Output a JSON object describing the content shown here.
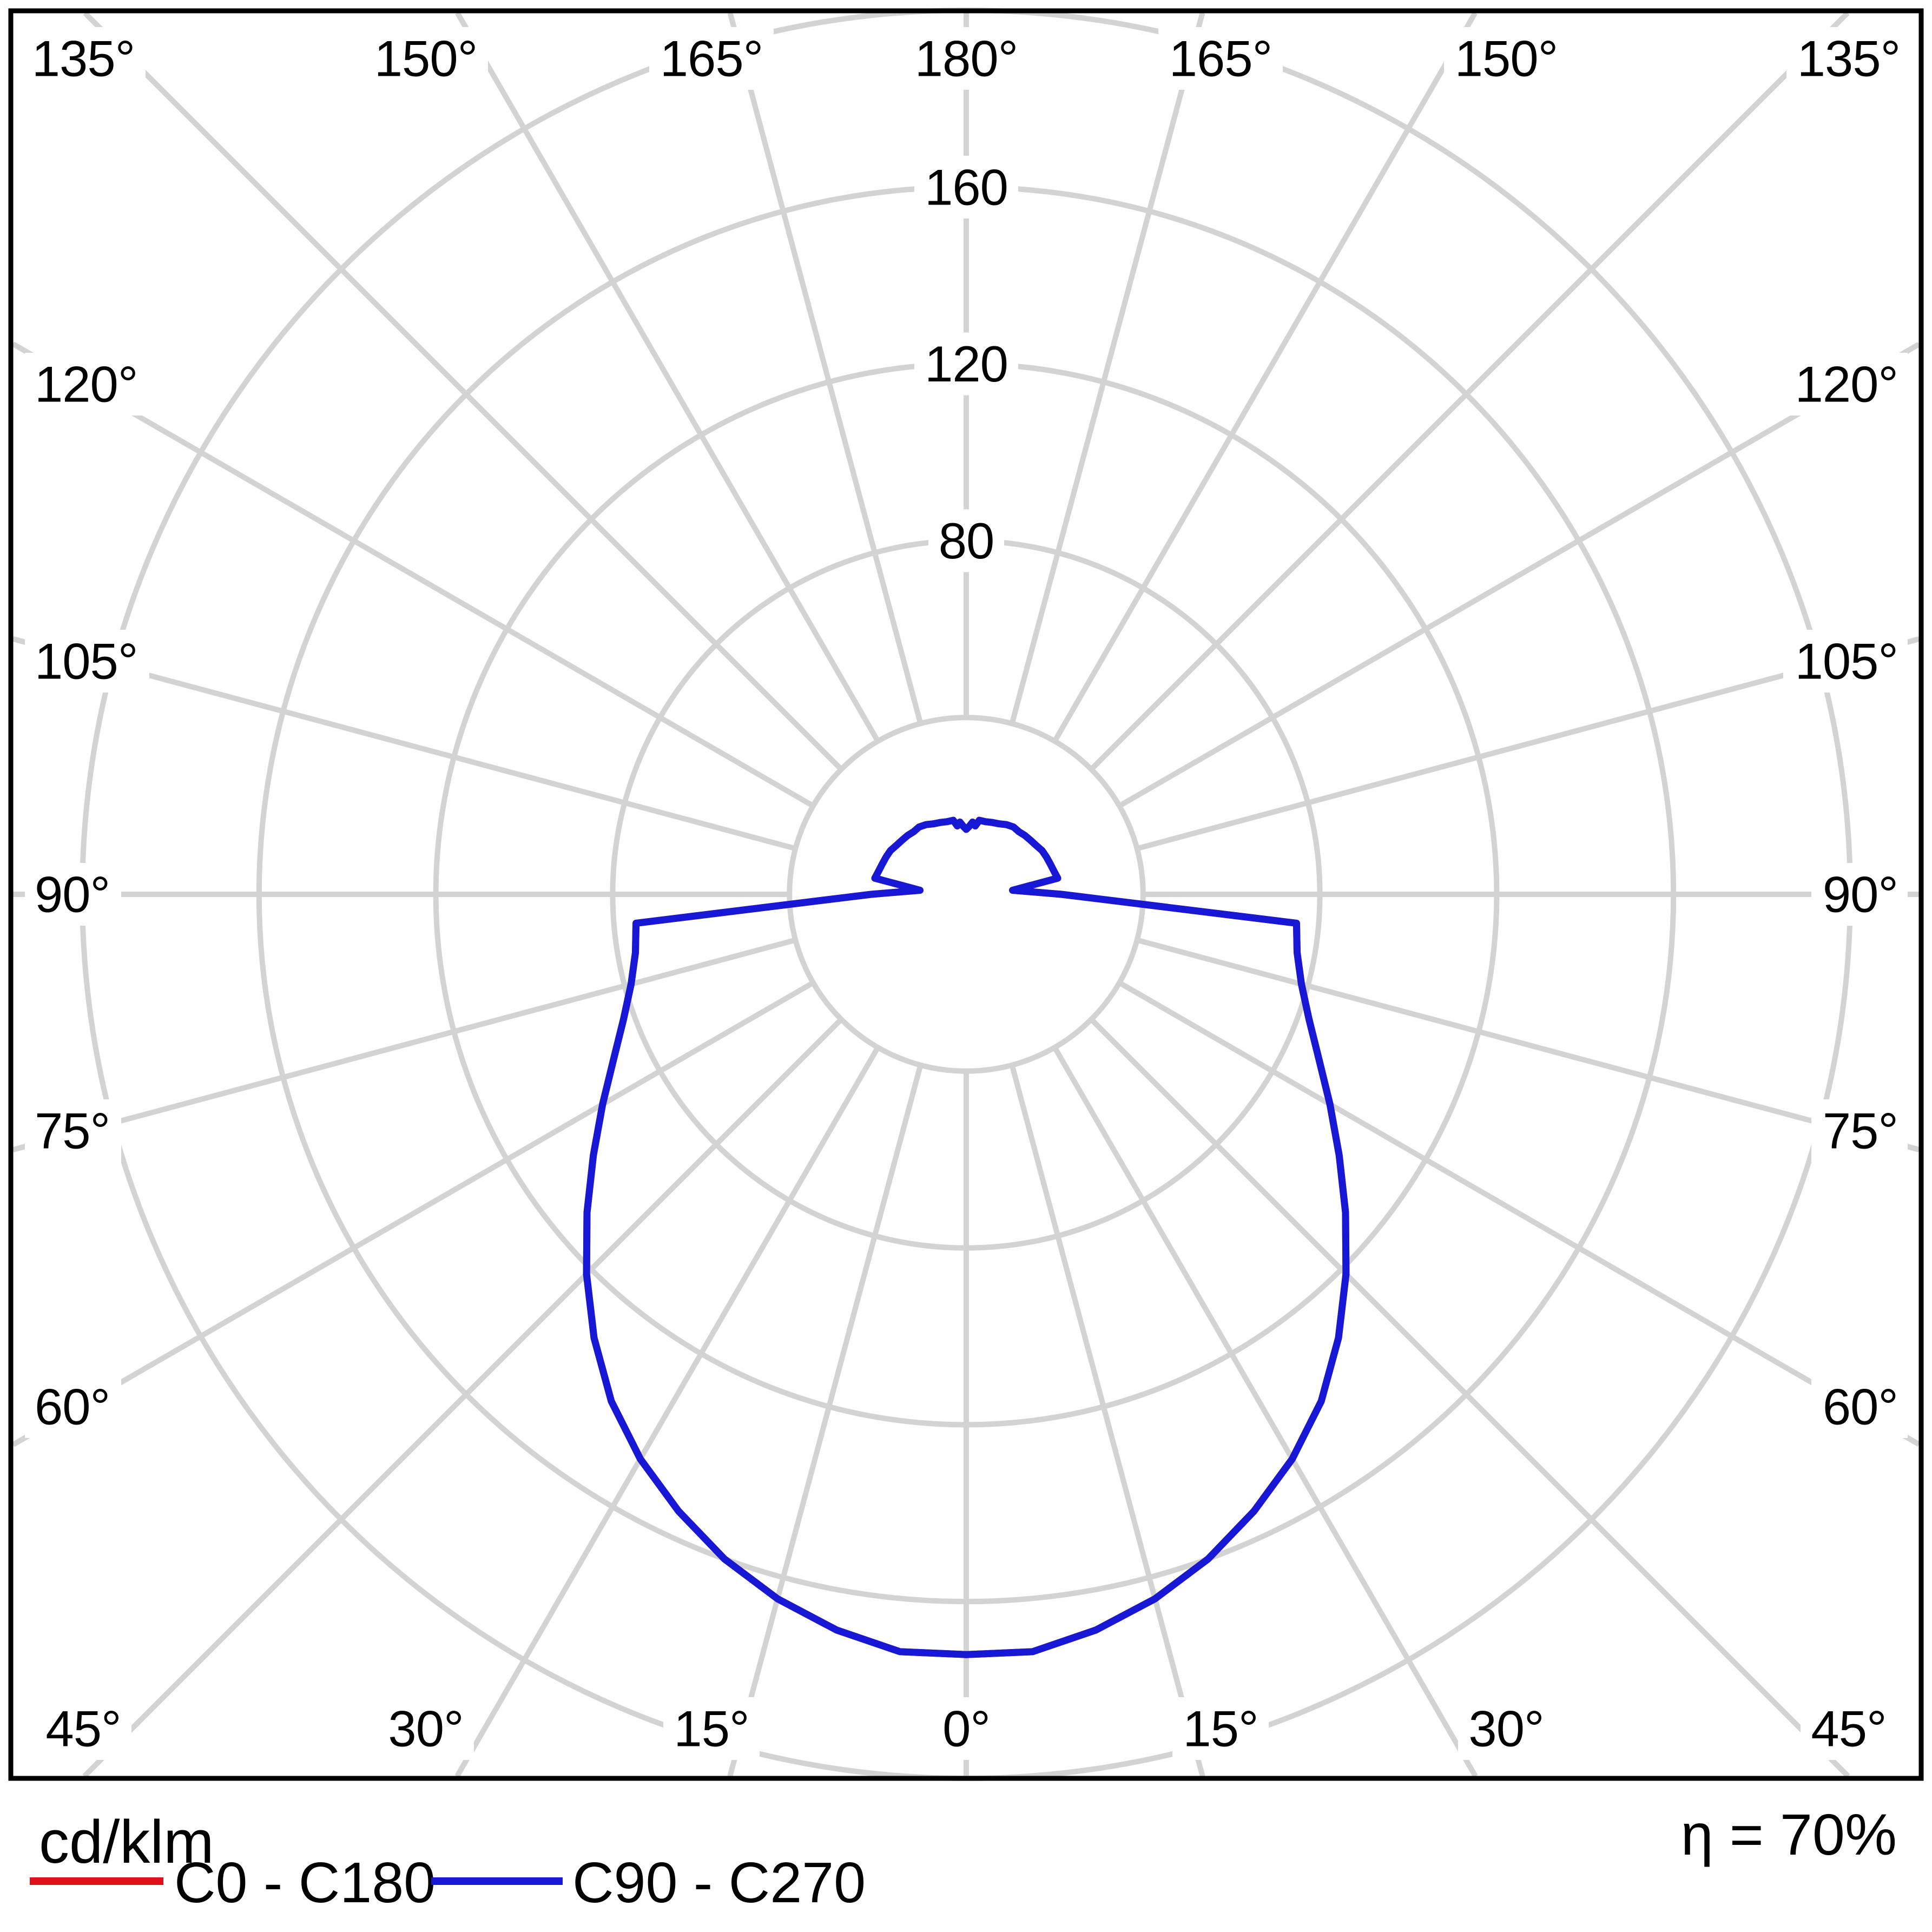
{
  "chart_data": {
    "type": "polar_intensity_distribution",
    "unit_label": "cd/klm",
    "efficiency_label": "η = 70%",
    "legend": [
      {
        "label": "C0 - C180",
        "color": "#e01019"
      },
      {
        "label": "C90 - C270",
        "color": "#1717d6"
      }
    ],
    "radial_ticks": [
      40,
      80,
      120,
      160,
      200
    ],
    "radial_tick_labels": [
      {
        "value": 80,
        "text": "80"
      },
      {
        "value": 120,
        "text": "120"
      },
      {
        "value": 160,
        "text": "160"
      }
    ],
    "angle_step_deg": 15,
    "angle_labels": {
      "top": [
        "135°",
        "150°",
        "165°",
        "180°",
        "165°",
        "150°",
        "135°"
      ],
      "left": [
        "120°",
        "105°",
        "90°",
        "75°",
        "60°"
      ],
      "right": [
        "120°",
        "105°",
        "90°",
        "75°",
        "60°"
      ],
      "bottom": [
        "45°",
        "30°",
        "15°",
        "0°",
        "15°",
        "30°",
        "45°"
      ]
    },
    "gamma_angles_deg": [
      0,
      5,
      10,
      15,
      20,
      25,
      30,
      35,
      40,
      45,
      50,
      55,
      60,
      65,
      70,
      75,
      80,
      85,
      90,
      95,
      100,
      105,
      110,
      115,
      120,
      125,
      130,
      135,
      140,
      145,
      150,
      155,
      160,
      165,
      170,
      172.5,
      175,
      177.5,
      180
    ],
    "intensity_cd_per_klm": [
      172,
      172,
      169,
      165,
      160,
      154,
      147.5,
      140,
      131,
      121.5,
      112,
      103,
      95,
      88,
      82.5,
      78.5,
      76,
      75,
      21.5,
      10.5,
      21,
      20.5,
      20.2,
      20,
      19.8,
      19.3,
      19,
      18.8,
      18.5,
      18.6,
      18.2,
      17.6,
      17.3,
      17,
      17,
      15.6,
      16.4,
      15.4,
      14.7
    ],
    "curves_note": "C0-C180 curve coincides with C90-C270 curve",
    "colors": {
      "grid": "#d3d3d3",
      "border": "#000000",
      "background": "#ffffff",
      "curve_c0_c180": "#e01019",
      "curve_c90_c270": "#1717d6"
    }
  }
}
